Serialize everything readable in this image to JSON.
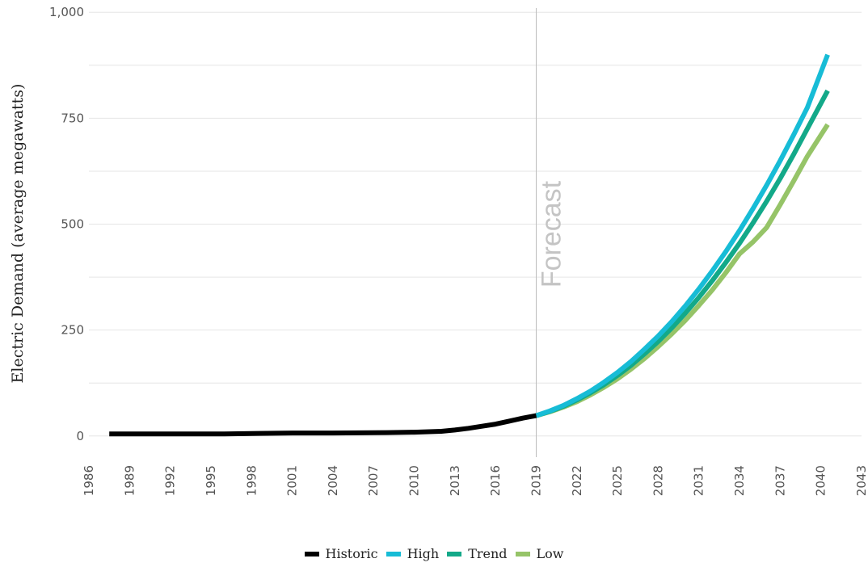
{
  "chart_data": {
    "type": "line",
    "title": "",
    "xlabel": "",
    "ylabel": "Electric Demand (average megawatts)",
    "xlim": [
      1986,
      2043
    ],
    "ylim": [
      -50,
      1010
    ],
    "x_ticks": [
      1986,
      1989,
      1992,
      1995,
      1998,
      2001,
      2004,
      2007,
      2010,
      2013,
      2016,
      2019,
      2022,
      2025,
      2028,
      2031,
      2034,
      2037,
      2040,
      2043
    ],
    "y_ticks": [
      0,
      250,
      500,
      750,
      1000
    ],
    "y_tick_labels": [
      "0",
      "250",
      "500",
      "750",
      "1,000"
    ],
    "grid": true,
    "legend_position": "bottom",
    "annotation": {
      "text": "Forecast",
      "x": 2019
    },
    "series": [
      {
        "name": "Historic",
        "color": "#000000",
        "x": [
          1987.5,
          1990,
          1993,
          1996,
          1998.5,
          2001,
          2004,
          2008,
          2010,
          2012,
          2013,
          2014,
          2015,
          2016,
          2017,
          2018,
          2019
        ],
        "y": [
          5,
          5,
          5,
          5,
          6,
          7,
          7,
          8,
          9,
          11,
          14,
          18,
          23,
          28,
          35,
          42,
          48
        ]
      },
      {
        "name": "High",
        "color": "#17bcd6",
        "x": [
          2019,
          2020,
          2021,
          2022,
          2023,
          2024,
          2025,
          2026,
          2027,
          2028,
          2029,
          2030,
          2031,
          2032,
          2033,
          2034,
          2035,
          2036,
          2037,
          2038,
          2039,
          2040.5
        ],
        "y": [
          48,
          59,
          72,
          88,
          106,
          127,
          150,
          176,
          205,
          236,
          270,
          307,
          347,
          390,
          436,
          485,
          537,
          592,
          650,
          711,
          775,
          900
        ]
      },
      {
        "name": "Trend",
        "color": "#13a989",
        "x": [
          2019,
          2020,
          2021,
          2022,
          2023,
          2024,
          2025,
          2026,
          2027,
          2028,
          2029,
          2030,
          2031,
          2032,
          2033,
          2034,
          2035,
          2036,
          2037,
          2038,
          2039,
          2040.5
        ],
        "y": [
          48,
          58,
          70,
          85,
          102,
          121,
          143,
          167,
          194,
          223,
          255,
          290,
          327,
          367,
          410,
          455,
          503,
          554,
          608,
          665,
          725,
          815
        ]
      },
      {
        "name": "Low",
        "color": "#96c468",
        "x": [
          2019,
          2020,
          2021,
          2022,
          2023,
          2024,
          2025,
          2026,
          2027,
          2028,
          2029,
          2030,
          2031,
          2032,
          2033,
          2034,
          2035,
          2036,
          2037,
          2038,
          2039,
          2040.5
        ],
        "y": [
          48,
          57,
          68,
          81,
          97,
          115,
          135,
          158,
          183,
          211,
          241,
          273,
          308,
          345,
          386,
          430,
          458,
          492,
          546,
          602,
          660,
          735
        ]
      }
    ]
  }
}
